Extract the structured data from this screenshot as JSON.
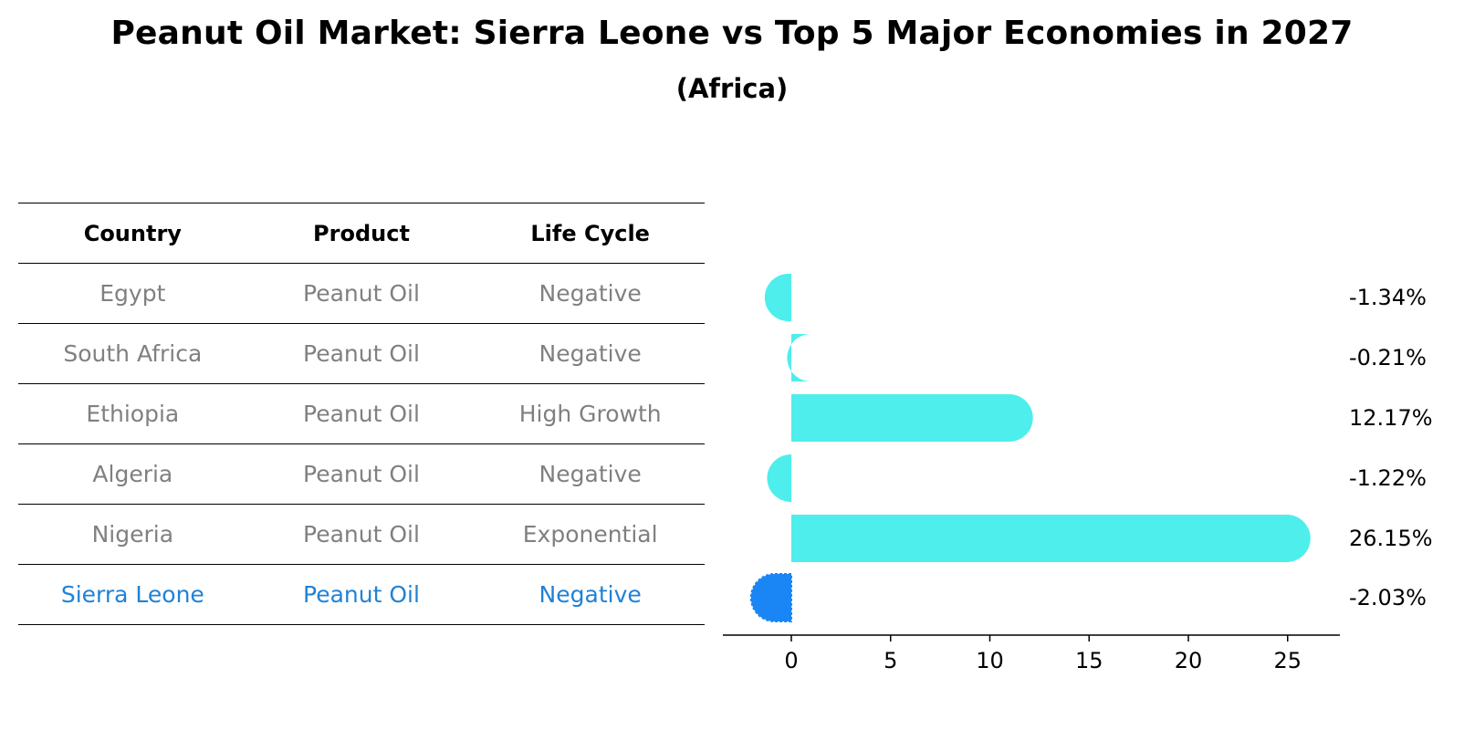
{
  "title": "Peanut Oil Market: Sierra Leone vs Top 5 Major Economies in 2027",
  "subtitle": "(Africa)",
  "table": {
    "headers": [
      "Country",
      "Product",
      "Life Cycle"
    ],
    "rows": [
      {
        "country": "Egypt",
        "product": "Peanut Oil",
        "life_cycle": "Negative"
      },
      {
        "country": "South Africa",
        "product": "Peanut Oil",
        "life_cycle": "Negative"
      },
      {
        "country": "Ethiopia",
        "product": "Peanut Oil",
        "life_cycle": "High Growth"
      },
      {
        "country": "Algeria",
        "product": "Peanut Oil",
        "life_cycle": "Negative"
      },
      {
        "country": "Nigeria",
        "product": "Peanut Oil",
        "life_cycle": "Exponential"
      },
      {
        "country": "Sierra Leone",
        "product": "Peanut Oil",
        "life_cycle": "Negative"
      }
    ]
  },
  "colors": {
    "bar": "#4eeeec",
    "highlight_bar": "#1a86f5",
    "highlight_text": "#1f82d6",
    "muted_text": "#808080"
  },
  "chart_data": {
    "type": "bar",
    "orientation": "horizontal",
    "categories": [
      "Egypt",
      "South Africa",
      "Ethiopia",
      "Algeria",
      "Nigeria",
      "Sierra Leone"
    ],
    "values": [
      -1.34,
      -0.21,
      12.17,
      -1.22,
      26.15,
      -2.03
    ],
    "value_labels": [
      "-1.34%",
      "-0.21%",
      "12.17%",
      "-1.22%",
      "26.15%",
      "-2.03%"
    ],
    "highlight": "Sierra Leone",
    "xticks": [
      0,
      5,
      10,
      15,
      20,
      25
    ],
    "xlim": [
      -3.5,
      27.5
    ],
    "xlabel": "",
    "ylabel": ""
  }
}
